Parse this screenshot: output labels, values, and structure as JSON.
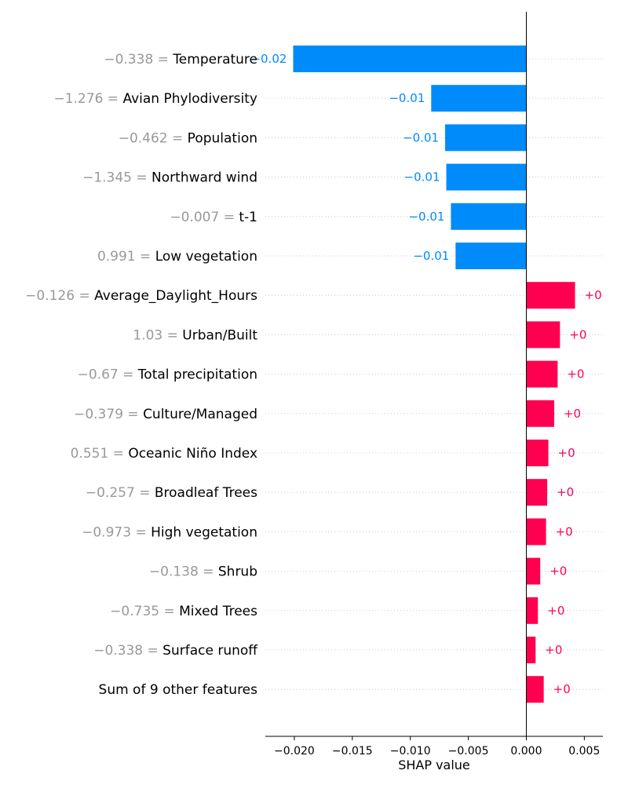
{
  "chart_data": {
    "type": "bar",
    "orientation": "horizontal",
    "title": "",
    "xlabel": "SHAP value",
    "ylabel": "",
    "xlim": [
      -0.0225,
      0.0066
    ],
    "xticks": [
      -0.02,
      -0.015,
      -0.01,
      -0.005,
      0.0,
      0.005
    ],
    "xtick_labels": [
      "−0.020",
      "−0.015",
      "−0.010",
      "−0.005",
      "0.000",
      "0.005"
    ],
    "grid": "horizontal dotted",
    "colors": {
      "negative": "#008bfb",
      "positive": "#ff0051",
      "feature_value": "#999999"
    },
    "bars": [
      {
        "feature_value": "−0.338 = ",
        "feature": "Temperature",
        "value": -0.0201,
        "label": "−0.02"
      },
      {
        "feature_value": "−1.276 = ",
        "feature": "Avian Phylodiversity",
        "value": -0.0082,
        "label": "−0.01"
      },
      {
        "feature_value": "−0.462 = ",
        "feature": "Population",
        "value": -0.007,
        "label": "−0.01"
      },
      {
        "feature_value": "−1.345 = ",
        "feature": "Northward wind",
        "value": -0.0069,
        "label": "−0.01"
      },
      {
        "feature_value": "−0.007 = ",
        "feature": "t-1",
        "value": -0.0065,
        "label": "−0.01"
      },
      {
        "feature_value": "0.991 = ",
        "feature": "Low vegetation",
        "value": -0.0061,
        "label": "−0.01"
      },
      {
        "feature_value": "−0.126 = ",
        "feature": "Average_Daylight_Hours",
        "value": 0.0042,
        "label": "+0"
      },
      {
        "feature_value": "1.03 = ",
        "feature": "Urban/Built",
        "value": 0.0029,
        "label": "+0"
      },
      {
        "feature_value": "−0.67 = ",
        "feature": "Total precipitation",
        "value": 0.0027,
        "label": "+0"
      },
      {
        "feature_value": "−0.379 = ",
        "feature": "Culture/Managed",
        "value": 0.0024,
        "label": "+0"
      },
      {
        "feature_value": "0.551 = ",
        "feature": "Oceanic Niño Index",
        "value": 0.0019,
        "label": "+0"
      },
      {
        "feature_value": "−0.257 = ",
        "feature": "Broadleaf Trees",
        "value": 0.0018,
        "label": "+0"
      },
      {
        "feature_value": "−0.973 = ",
        "feature": "High vegetation",
        "value": 0.0017,
        "label": "+0"
      },
      {
        "feature_value": "−0.138 = ",
        "feature": "Shrub",
        "value": 0.0012,
        "label": "+0"
      },
      {
        "feature_value": "−0.735 = ",
        "feature": "Mixed Trees",
        "value": 0.001,
        "label": "+0"
      },
      {
        "feature_value": "−0.338 = ",
        "feature": "Surface runoff",
        "value": 0.0008,
        "label": "+0"
      },
      {
        "feature_value": "",
        "feature": "Sum of 9 other features",
        "value": 0.0015,
        "label": "+0"
      }
    ]
  }
}
